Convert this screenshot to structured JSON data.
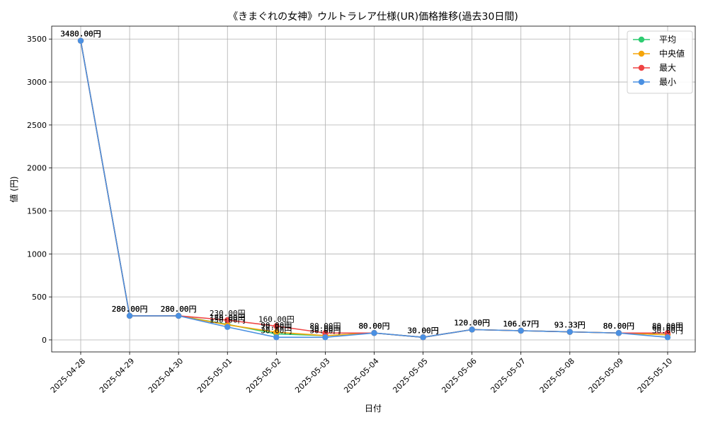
{
  "chart_data": {
    "type": "line",
    "title": "《きまぐれの女神》ウルトラレア仕様(UR)価格推移(過去30日間)",
    "xlabel": "日付",
    "ylabel": "値 (円)",
    "ylim": [
      -140,
      3650
    ],
    "yticks": [
      0,
      500,
      1000,
      1500,
      2000,
      2500,
      3000,
      3500
    ],
    "grid": true,
    "legend_position": "top-right",
    "label_suffix": "円",
    "categories": [
      "2025-04-28",
      "2025-04-29",
      "2025-04-30",
      "2025-05-01",
      "2025-05-02",
      "2025-05-03",
      "2025-05-04",
      "2025-05-05",
      "2025-05-06",
      "2025-05-07",
      "2025-05-08",
      "2025-05-09",
      "2025-05-10"
    ],
    "series": [
      {
        "name": "平均",
        "color": "#2ecc71",
        "values": [
          3480,
          280,
          280,
          180,
          70,
          50,
          80,
          30,
          120,
          106.67,
          93.33,
          80,
          60
        ]
      },
      {
        "name": "中央値",
        "color": "#f5a50a",
        "values": [
          3480,
          280,
          280,
          175,
          90,
          50,
          80,
          30,
          120,
          106.67,
          93.33,
          80,
          60
        ]
      },
      {
        "name": "最大",
        "color": "#ef4444",
        "values": [
          3480,
          280,
          280,
          230,
          160,
          80,
          80,
          30,
          120,
          106.67,
          93.33,
          80,
          80
        ]
      },
      {
        "name": "最小",
        "color": "#4a90e2",
        "values": [
          3480,
          280,
          280,
          150,
          30,
          30,
          80,
          30,
          120,
          106.67,
          93.33,
          80,
          30
        ]
      }
    ]
  }
}
